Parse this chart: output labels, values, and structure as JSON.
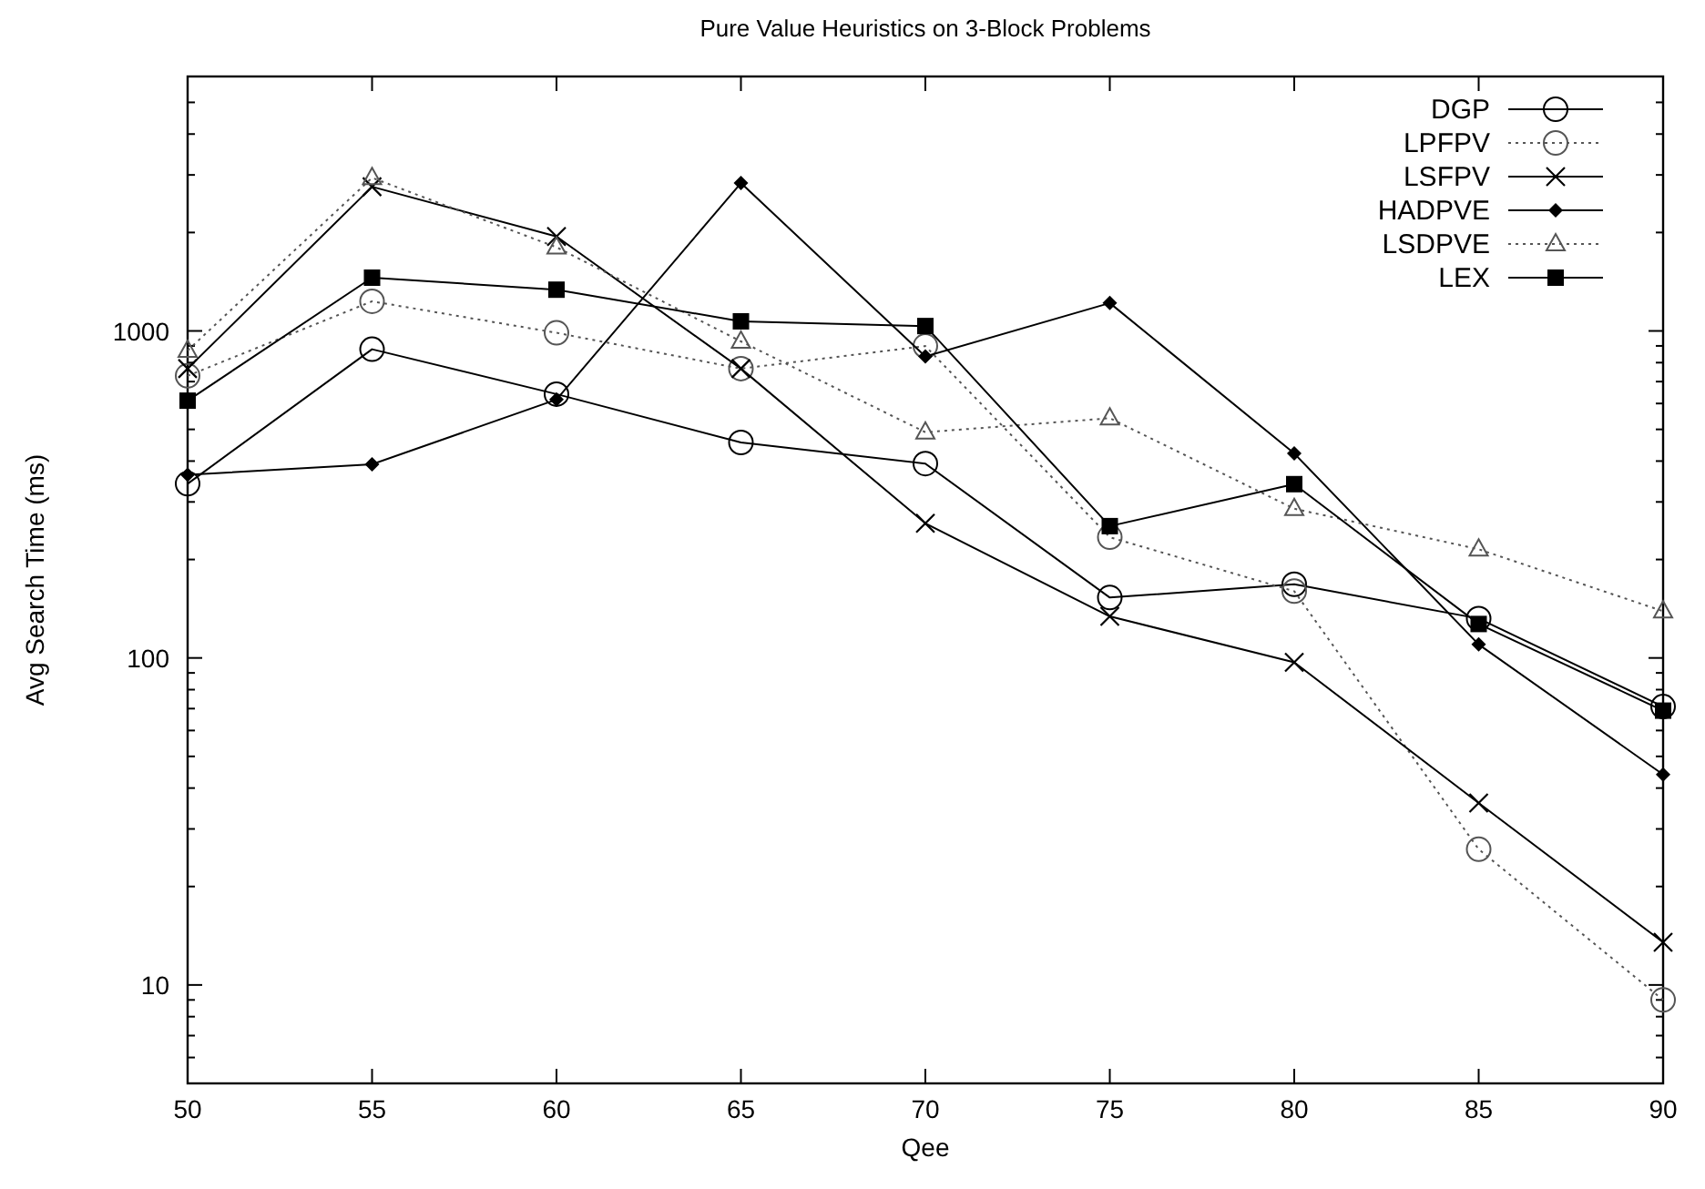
{
  "chart_data": {
    "type": "line",
    "title": "Pure Value Heuristics on 3-Block Problems",
    "xlabel": "Qee",
    "ylabel": "Avg Search Time (ms)",
    "x": [
      50,
      55,
      60,
      65,
      70,
      75,
      80,
      85,
      90
    ],
    "xlim": [
      50,
      90
    ],
    "xticks": [
      50,
      55,
      60,
      65,
      70,
      75,
      80,
      85,
      90
    ],
    "ylim": [
      5,
      6000
    ],
    "log": true,
    "yticks": [
      {
        "value": 5,
        "label": null
      },
      {
        "value": 6,
        "label": null
      },
      {
        "value": 7,
        "label": null
      },
      {
        "value": 8,
        "label": null
      },
      {
        "value": 9,
        "label": null
      },
      10,
      {
        "value": 20,
        "label": null
      },
      {
        "value": 30,
        "label": null
      },
      {
        "value": 40,
        "label": null
      },
      {
        "value": 50,
        "label": null
      },
      {
        "value": 60,
        "label": null
      },
      {
        "value": 70,
        "label": null
      },
      {
        "value": 80,
        "label": null
      },
      {
        "value": 90,
        "label": null
      },
      100,
      {
        "value": 200,
        "label": null
      },
      {
        "value": 300,
        "label": null
      },
      {
        "value": 400,
        "label": null
      },
      {
        "value": 500,
        "label": null
      },
      {
        "value": 600,
        "label": null
      },
      {
        "value": 700,
        "label": null
      },
      {
        "value": 800,
        "label": null
      },
      {
        "value": 900,
        "label": null
      },
      1000,
      {
        "value": 2000,
        "label": null
      },
      {
        "value": 3000,
        "label": null
      },
      {
        "value": 4000,
        "label": null
      },
      {
        "value": 5000,
        "label": null
      }
    ],
    "grid": false,
    "legend": "top right",
    "series": [
      {
        "name": "DGP",
        "color": "#000000",
        "marker": "circle",
        "line_style": "solid",
        "values": [
          341,
          879,
          641,
          456,
          393,
          153,
          168,
          132,
          71
        ]
      },
      {
        "name": "LPFPV",
        "color": "#555555",
        "marker": "circle",
        "line_style": "dotted",
        "values": [
          729,
          1232,
          987,
          767,
          899,
          234,
          160,
          26,
          9.0
        ]
      },
      {
        "name": "LSFPV",
        "color": "#000000",
        "marker": "cross",
        "line_style": "solid",
        "values": [
          767,
          2760,
          1945,
          767,
          258,
          134,
          97,
          36,
          13.5
        ]
      },
      {
        "name": "HADPVE",
        "color": "#000000",
        "marker": "diamond",
        "line_style": "solid",
        "values": [
          363,
          391,
          617,
          2833,
          836,
          1217,
          422,
          110,
          44
        ]
      },
      {
        "name": "LSDPVE",
        "color": "#555555",
        "marker": "triangle",
        "line_style": "dotted",
        "values": [
          871,
          2940,
          1803,
          929,
          490,
          541,
          286,
          215,
          139
        ]
      },
      {
        "name": "LEX",
        "color": "#000000",
        "marker": "square",
        "line_style": "solid",
        "values": [
          612,
          1455,
          1337,
          1070,
          1035,
          253,
          340,
          127,
          69
        ]
      }
    ]
  }
}
